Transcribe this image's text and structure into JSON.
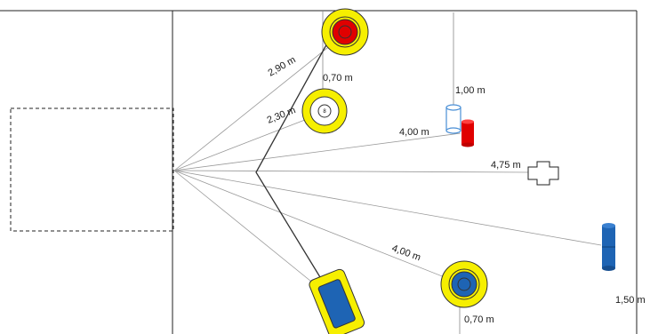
{
  "labels": {
    "d_290": "2,90 m",
    "d_070_top": "0,70 m",
    "d_230": "2,30 m",
    "d_100": "1,00 m",
    "d_400_top": "4,00 m",
    "d_475": "4,75 m",
    "d_400_bottom": "4,00 m",
    "d_070_bottom": "0,70 m",
    "d_150": "1,50 m",
    "target_badge": "8"
  },
  "colors": {
    "target_ring": "#f6ef00",
    "target_red": "#e00000",
    "target_blue": "#1e64b4",
    "cylinder_red": "#e00000",
    "cylinder_blue": "#1e64b4",
    "cylinder_outline": "#4a8fd6",
    "lines": "#888888",
    "path_line": "#333333",
    "frame": "#222222"
  }
}
